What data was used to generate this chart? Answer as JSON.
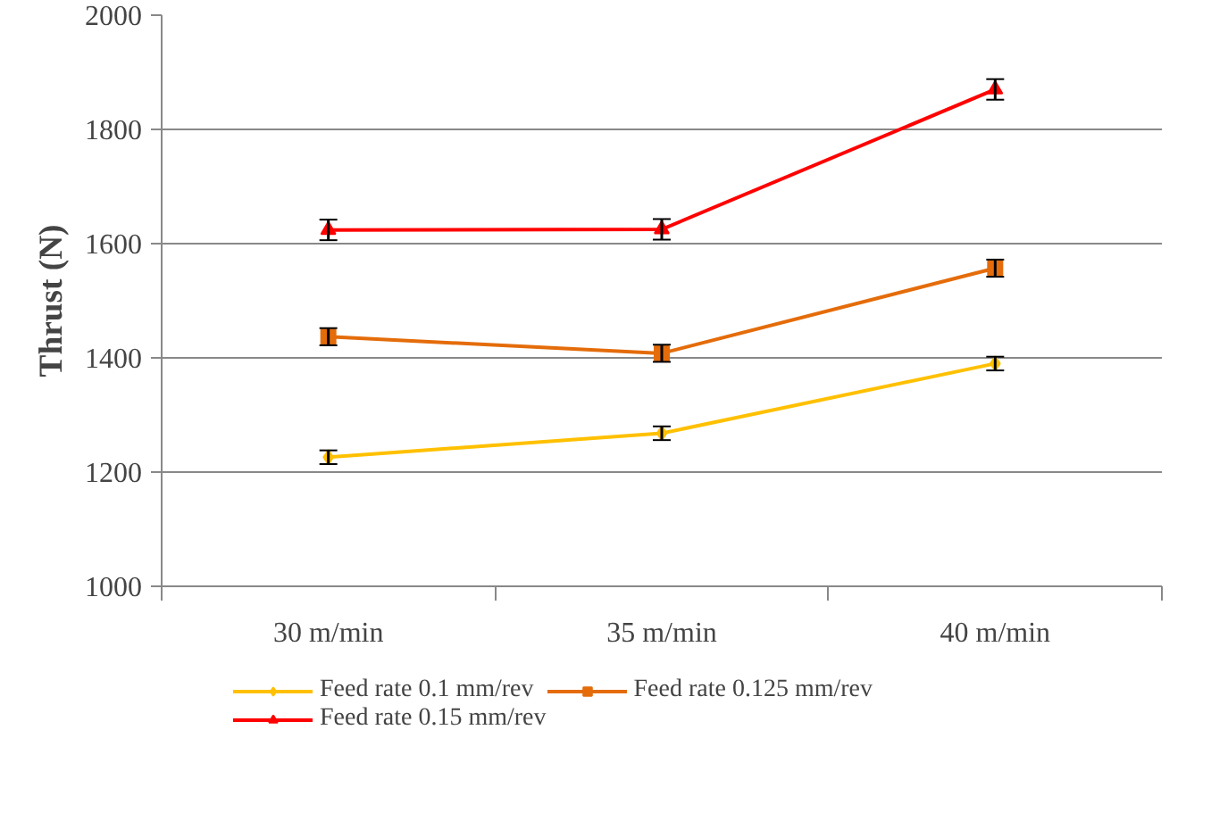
{
  "chart_data": {
    "type": "line",
    "ylabel": "Thrust (N)",
    "categories": [
      "30 m/min",
      "35 m/min",
      "40 m/min"
    ],
    "ylim": [
      1000,
      2000
    ],
    "yticks": [
      1000,
      1200,
      1400,
      1600,
      1800,
      2000
    ],
    "grid": "y",
    "legend": "bottom",
    "series": [
      {
        "name": "Feed rate 0.1 mm/rev",
        "color": "#ffc000",
        "marker": "diamond",
        "values": [
          1226,
          1268,
          1390
        ],
        "errors": [
          12,
          12,
          12
        ]
      },
      {
        "name": "Feed rate 0.125 mm/rev",
        "color": "#e46c0a",
        "marker": "square",
        "values": [
          1437,
          1408,
          1557
        ],
        "errors": [
          15,
          15,
          15
        ]
      },
      {
        "name": "Feed rate 0.15 mm/rev",
        "color": "#ff0000",
        "marker": "triangle",
        "values": [
          1624,
          1625,
          1870
        ],
        "errors": [
          18,
          18,
          18
        ]
      }
    ]
  }
}
